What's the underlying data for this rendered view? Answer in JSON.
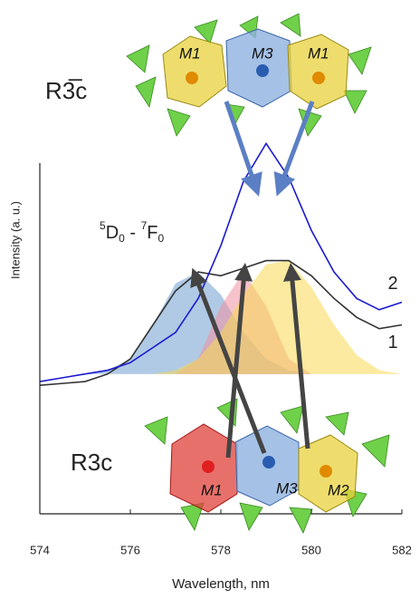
{
  "chart_data": {
    "type": "line",
    "x_label": "Wavelength, nm",
    "y_label": "Intensity (a. u.)",
    "x": [
      574,
      574.5,
      575,
      575.5,
      576,
      576.5,
      577,
      577.5,
      578,
      578.5,
      579,
      579.5,
      580,
      580.5,
      581,
      581.5,
      582
    ],
    "series": [
      {
        "name": "1",
        "color": "#333333",
        "values": [
          34,
          34.5,
          35,
          37,
          41,
          50,
          59,
          64,
          63,
          65,
          67,
          67,
          63,
          57,
          52,
          49,
          50
        ]
      },
      {
        "name": "2",
        "color": "#1a1ad0",
        "values": [
          35,
          36,
          37,
          38,
          40,
          44,
          48,
          57,
          71,
          88,
          98,
          89,
          75,
          64,
          57,
          54,
          56
        ]
      }
    ],
    "components": [
      {
        "color": "#6f9fd0",
        "values": [
          37,
          37,
          37,
          38,
          41,
          50,
          61,
          64,
          58,
          48,
          41,
          38,
          37,
          37,
          37,
          37,
          37
        ]
      },
      {
        "color": "#f08fa0",
        "values": [
          37,
          37,
          37,
          37,
          37,
          37,
          37,
          41,
          55,
          64,
          55,
          41,
          37,
          37,
          37,
          37,
          37
        ]
      },
      {
        "color": "#f8d850",
        "values": [
          37,
          37,
          37,
          37,
          37,
          37,
          38,
          41,
          48,
          58,
          66,
          67,
          60,
          50,
          42,
          38,
          37
        ]
      }
    ],
    "xlim": [
      574,
      582
    ],
    "xticks": [
      574,
      576,
      578,
      580,
      582
    ],
    "ylim": [
      0,
      100
    ],
    "annotations": {
      "top_group": "R3̅c",
      "bottom_group": "R3c",
      "transition": [
        "5",
        "D",
        "0",
        " - ",
        "7",
        "F",
        "0"
      ],
      "top_sites": [
        "M1",
        "M3",
        "M1"
      ],
      "bottom_sites": [
        "M1",
        "M3",
        "M2"
      ]
    }
  }
}
